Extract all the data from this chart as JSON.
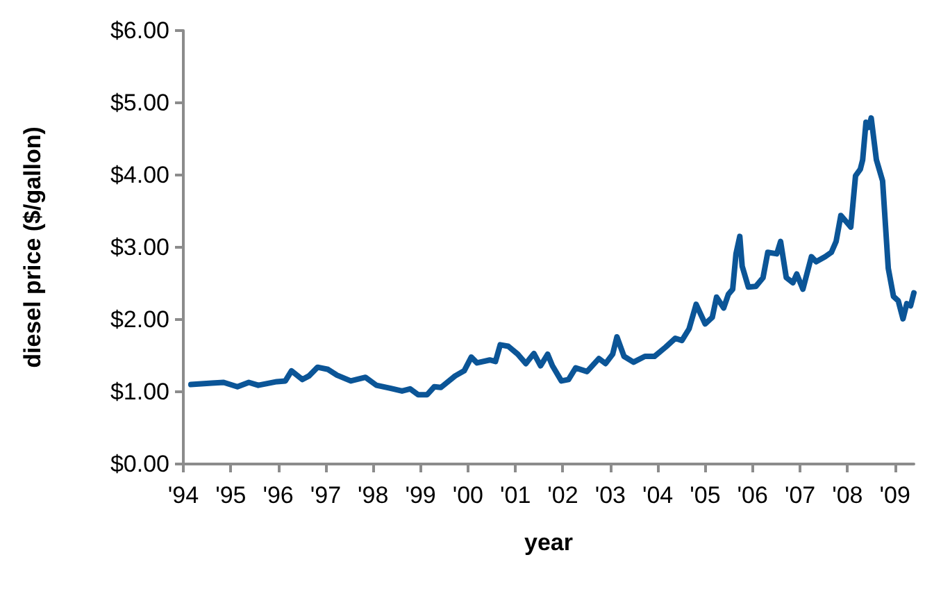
{
  "chart_data": {
    "type": "line",
    "xlabel": "year",
    "ylabel": "diesel price ($/gallon)",
    "xlim": [
      1994,
      2009.4
    ],
    "ylim": [
      0,
      6
    ],
    "xticks": [
      {
        "value": 1994,
        "label": "'94"
      },
      {
        "value": 1995,
        "label": "'95"
      },
      {
        "value": 1996,
        "label": "'96"
      },
      {
        "value": 1997,
        "label": "'97"
      },
      {
        "value": 1998,
        "label": "'98"
      },
      {
        "value": 1999,
        "label": "'99"
      },
      {
        "value": 2000,
        "label": "'00"
      },
      {
        "value": 2001,
        "label": "'01"
      },
      {
        "value": 2002,
        "label": "'02"
      },
      {
        "value": 2003,
        "label": "'03"
      },
      {
        "value": 2004,
        "label": "'04"
      },
      {
        "value": 2005,
        "label": "'05"
      },
      {
        "value": 2006,
        "label": "'06"
      },
      {
        "value": 2007,
        "label": "'07"
      },
      {
        "value": 2008,
        "label": "'08"
      },
      {
        "value": 2009,
        "label": "'09"
      }
    ],
    "yticks": [
      {
        "value": 0,
        "label": "$0.00"
      },
      {
        "value": 1,
        "label": "$1.00"
      },
      {
        "value": 2,
        "label": "$2.00"
      },
      {
        "value": 3,
        "label": "$3.00"
      },
      {
        "value": 4,
        "label": "$4.00"
      },
      {
        "value": 5,
        "label": "$5.00"
      },
      {
        "value": 6,
        "label": "$6.00"
      }
    ],
    "marker": "none",
    "line_style": "solid",
    "x": [
      1994.16,
      1994.6,
      1994.85,
      1995.14,
      1995.38,
      1995.58,
      1995.97,
      1996.15,
      1996.28,
      1996.51,
      1996.65,
      1996.83,
      1997.05,
      1997.24,
      1997.53,
      1997.84,
      1998.07,
      1998.36,
      1998.61,
      1998.78,
      1998.95,
      1999.14,
      1999.29,
      1999.43,
      1999.73,
      1999.92,
      2000.07,
      2000.19,
      2000.46,
      2000.58,
      2000.68,
      2000.85,
      2001.05,
      2001.22,
      2001.39,
      2001.53,
      2001.68,
      2001.78,
      2001.97,
      2002.12,
      2002.27,
      2002.51,
      2002.76,
      2002.9,
      2003.05,
      2003.14,
      2003.29,
      2003.49,
      2003.73,
      2003.93,
      2004.17,
      2004.37,
      2004.51,
      2004.66,
      2004.81,
      2005.0,
      2005.15,
      2005.24,
      2005.39,
      2005.49,
      2005.58,
      2005.65,
      2005.73,
      2005.78,
      2005.91,
      2006.07,
      2006.22,
      2006.32,
      2006.51,
      2006.59,
      2006.71,
      2006.85,
      2006.93,
      2007.06,
      2007.24,
      2007.34,
      2007.53,
      2007.66,
      2007.76,
      2007.86,
      2007.98,
      2008.07,
      2008.17,
      2008.27,
      2008.32,
      2008.39,
      2008.45,
      2008.5,
      2008.61,
      2008.74,
      2008.86,
      2008.97,
      2009.07,
      2009.17,
      2009.25,
      2009.33,
      2009.4
    ],
    "series": [
      {
        "color": "#0b5597",
        "values": [
          1.1,
          1.12,
          1.13,
          1.07,
          1.13,
          1.09,
          1.14,
          1.15,
          1.29,
          1.17,
          1.22,
          1.34,
          1.31,
          1.23,
          1.15,
          1.2,
          1.09,
          1.05,
          1.01,
          1.04,
          0.96,
          0.96,
          1.07,
          1.06,
          1.22,
          1.29,
          1.48,
          1.4,
          1.44,
          1.42,
          1.65,
          1.63,
          1.52,
          1.39,
          1.53,
          1.36,
          1.52,
          1.36,
          1.15,
          1.17,
          1.33,
          1.28,
          1.46,
          1.39,
          1.52,
          1.76,
          1.49,
          1.41,
          1.49,
          1.49,
          1.62,
          1.74,
          1.71,
          1.87,
          2.21,
          1.94,
          2.03,
          2.31,
          2.16,
          2.35,
          2.42,
          2.91,
          3.15,
          2.74,
          2.45,
          2.46,
          2.58,
          2.93,
          2.91,
          3.08,
          2.58,
          2.51,
          2.63,
          2.42,
          2.87,
          2.8,
          2.87,
          2.93,
          3.08,
          3.44,
          3.35,
          3.28,
          3.99,
          4.08,
          4.21,
          4.73,
          4.66,
          4.79,
          4.21,
          3.92,
          2.71,
          2.32,
          2.26,
          2.01,
          2.22,
          2.19,
          2.37
        ]
      }
    ]
  }
}
